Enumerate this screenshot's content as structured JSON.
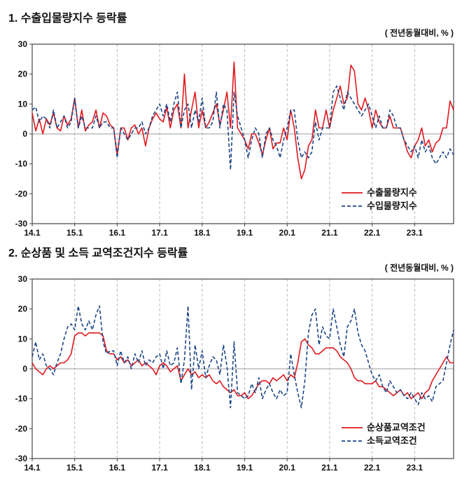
{
  "page": {
    "background": "#ffffff"
  },
  "chart_data": [
    {
      "type": "line",
      "title": "1. 수출입물량지수 등락률",
      "unit_label": "( 전년동월대비, % )",
      "ylim": [
        -30,
        30
      ],
      "y_ticks": [
        -30,
        -20,
        -10,
        0,
        10,
        20,
        30
      ],
      "x_tick_labels": [
        "14.1",
        "15.1",
        "16.1",
        "17.1",
        "18.1",
        "19.1",
        "20.1",
        "21.1",
        "22.1",
        "23.1"
      ],
      "grid": "vertical-dashed",
      "legend_position": "bottom-right",
      "series": [
        {
          "name": "수출물량지수",
          "color": "#e0181d",
          "style": "solid",
          "values": [
            7,
            1,
            5,
            0,
            5,
            3,
            7,
            2,
            1,
            6,
            3,
            5,
            12,
            2,
            8,
            1,
            3,
            4,
            8,
            2,
            7,
            6,
            3,
            2,
            -7,
            2,
            2,
            -2,
            2,
            3,
            0,
            2,
            -4,
            2,
            5,
            7,
            5,
            4,
            9,
            2,
            8,
            10,
            2,
            20,
            2,
            8,
            14,
            2,
            8,
            2,
            4,
            7,
            10,
            3,
            8,
            14,
            2,
            24,
            2,
            0,
            -2,
            -5,
            0,
            0,
            -3,
            -7,
            -2,
            2,
            -5,
            -3,
            -3,
            2,
            -2,
            8,
            2,
            -8,
            -15,
            -12,
            -4,
            -2,
            8,
            2,
            2,
            8,
            2,
            8,
            12,
            16,
            10,
            12,
            23,
            21,
            10,
            8,
            12,
            8,
            2,
            8,
            4,
            2,
            2,
            6,
            2,
            2,
            2,
            -2,
            -6,
            -8,
            -4,
            -2,
            2,
            -4,
            -2,
            -6,
            -3,
            -2,
            2,
            2,
            11,
            8
          ]
        },
        {
          "name": "수입물량지수",
          "color": "#1c4587",
          "style": "dashed",
          "values": [
            8,
            9,
            4,
            6,
            5,
            2,
            8,
            2,
            4,
            6,
            2,
            4,
            12,
            2,
            6,
            2,
            2,
            2,
            6,
            2,
            4,
            4,
            2,
            2,
            -8,
            2,
            0,
            -2,
            0,
            2,
            2,
            4,
            0,
            2,
            6,
            8,
            10,
            6,
            10,
            4,
            10,
            14,
            2,
            8,
            10,
            2,
            8,
            4,
            12,
            2,
            2,
            4,
            14,
            2,
            10,
            8,
            -12,
            14,
            6,
            2,
            -2,
            -8,
            -2,
            2,
            0,
            -8,
            0,
            2,
            -2,
            -4,
            -8,
            -2,
            2,
            8,
            8,
            -2,
            -8,
            -6,
            -8,
            -6,
            4,
            -2,
            2,
            2,
            2,
            14,
            16,
            12,
            8,
            14,
            12,
            10,
            8,
            6,
            8,
            10,
            6,
            2,
            6,
            2,
            2,
            8,
            6,
            2,
            2,
            -2,
            -4,
            -6,
            -4,
            -8,
            -2,
            -6,
            -4,
            -8,
            -10,
            -8,
            -6,
            -8,
            -5,
            -7
          ]
        }
      ]
    },
    {
      "type": "line",
      "title": "2. 순상품 및 소득 교역조건지수 등락률",
      "unit_label": "( 전년동월대비, % )",
      "ylim": [
        -30,
        30
      ],
      "y_ticks": [
        -30,
        -20,
        -10,
        0,
        10,
        20,
        30
      ],
      "x_tick_labels": [
        "14.1",
        "15.1",
        "16.1",
        "17.1",
        "18.1",
        "19.1",
        "20.1",
        "21.1",
        "22.1",
        "23.1"
      ],
      "grid": "vertical-dashed",
      "legend_position": "bottom-right",
      "series": [
        {
          "name": "순상품교역조건",
          "color": "#e0181d",
          "style": "solid",
          "values": [
            2,
            0,
            -1,
            -2,
            0,
            1,
            0,
            1,
            2,
            2,
            3,
            5,
            11,
            12,
            12,
            11,
            12,
            12,
            12,
            12,
            11,
            6,
            5,
            5,
            3,
            4,
            2,
            3,
            1,
            2,
            3,
            1,
            2,
            1,
            0,
            -2,
            1,
            2,
            1,
            -1,
            0,
            1,
            -4,
            -2,
            0,
            -2,
            -1,
            -3,
            -2,
            -3,
            -2,
            -4,
            -5,
            -4,
            -6,
            -7,
            -8,
            -7,
            -9,
            -9,
            -8,
            -10,
            -9,
            -7,
            -5,
            -4,
            -4,
            -5,
            -3,
            -4,
            -3,
            -2,
            -4,
            -2,
            -3,
            2,
            9,
            10,
            8,
            7,
            5,
            5,
            6,
            7,
            7,
            7,
            6,
            4,
            3,
            2,
            0,
            -3,
            -4,
            -4,
            -5,
            -5,
            -5,
            -4,
            -6,
            -6,
            -7,
            -8,
            -9,
            -8,
            -7,
            -9,
            -8,
            -10,
            -9,
            -8,
            -10,
            -8,
            -7,
            -4,
            -2,
            0,
            2,
            4,
            2,
            2
          ]
        },
        {
          "name": "소득교역조건",
          "color": "#1c4587",
          "style": "dashed",
          "values": [
            4,
            9,
            3,
            5,
            1,
            0,
            -2,
            2,
            5,
            10,
            14,
            15,
            13,
            21,
            15,
            13,
            16,
            13,
            18,
            21,
            9,
            5,
            6,
            6,
            1,
            6,
            2,
            4,
            0,
            5,
            2,
            6,
            1,
            3,
            2,
            4,
            5,
            0,
            6,
            1,
            2,
            7,
            -5,
            3,
            21,
            -7,
            8,
            0,
            6,
            -3,
            1,
            4,
            3,
            -2,
            8,
            1,
            -13,
            9,
            -8,
            -9,
            -10,
            -9,
            -5,
            -8,
            -3,
            -10,
            -7,
            -5,
            -8,
            -10,
            -7,
            -9,
            -8,
            5,
            -2,
            -8,
            -13,
            -4,
            12,
            18,
            20,
            8,
            14,
            11,
            10,
            20,
            14,
            8,
            4,
            14,
            16,
            20,
            12,
            8,
            6,
            2,
            -2,
            -4,
            -2,
            -6,
            -8,
            -4,
            -6,
            -8,
            -7,
            -9,
            -10,
            -8,
            -10,
            -12,
            -8,
            -10,
            -9,
            -11,
            -6,
            -5,
            -4,
            2,
            8,
            13
          ]
        }
      ]
    }
  ]
}
